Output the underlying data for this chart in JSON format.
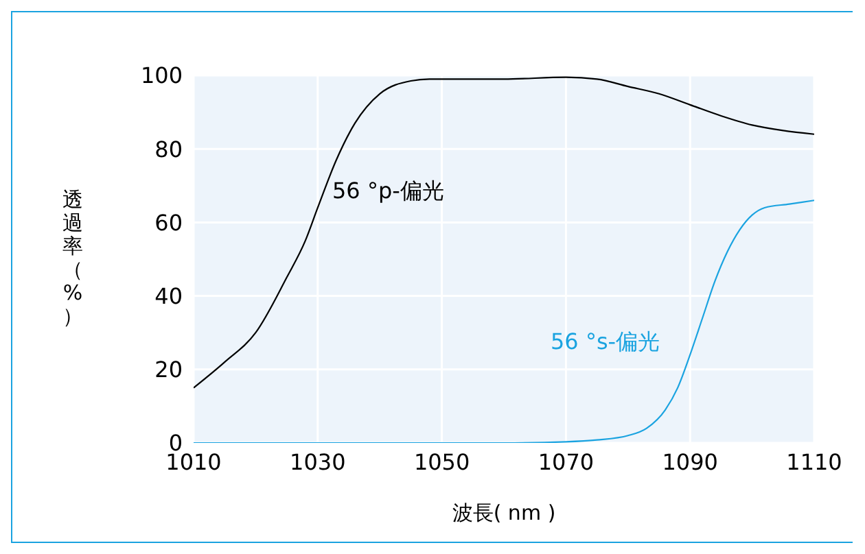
{
  "chart_data": {
    "type": "line",
    "xlabel": "波長( nm )",
    "ylabel": "透過率（%）",
    "xlim": [
      1010,
      1110
    ],
    "xticks": [
      1010,
      1030,
      1050,
      1070,
      1090,
      1110
    ],
    "ylim": [
      0,
      100
    ],
    "yticks": [
      0,
      20,
      40,
      60,
      80,
      100
    ],
    "grid": true,
    "marker": "none",
    "line_style": "solid",
    "series": [
      {
        "color": "#000000",
        "x": [
          1010,
          1015,
          1020,
          1025,
          1028,
          1030,
          1033,
          1036,
          1040,
          1045,
          1048,
          1060,
          1070,
          1075,
          1080,
          1085,
          1090,
          1095,
          1100,
          1105,
          1110
        ],
        "values": [
          15,
          22,
          30,
          45,
          55,
          64,
          77,
          87,
          95,
          98.5,
          99,
          99,
          99.5,
          99,
          97,
          95,
          92,
          89,
          86.5,
          85,
          84
        ]
      },
      {
        "color": "#1aa3e0",
        "x": [
          1010,
          1030,
          1050,
          1060,
          1070,
          1075,
          1080,
          1083,
          1086,
          1088,
          1090,
          1092,
          1094,
          1096,
          1098,
          1100,
          1102,
          1106,
          1110
        ],
        "values": [
          0,
          0,
          0,
          0,
          0.3,
          0.8,
          2,
          4,
          9,
          15,
          24,
          34,
          44,
          52,
          58,
          62,
          64,
          65,
          66
        ]
      }
    ],
    "annotations": [
      "56 °p-偏光",
      "56 °s-偏光"
    ]
  }
}
